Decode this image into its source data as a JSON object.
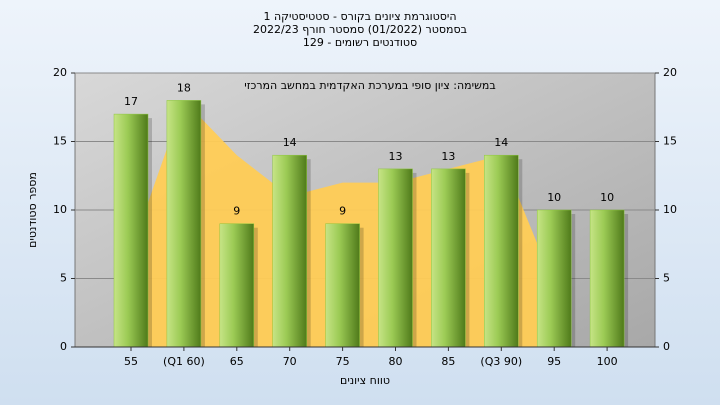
{
  "chart_data": {
    "type": "bar",
    "title": [
      "היסטוגרמת ציונים בקורס - סטטיסטיקה 1",
      "בסמסטר (01/2022) סמסטר חורף 2022/23",
      "סטודנטים רשומים - 129"
    ],
    "annotation": "במשימה: ציון סופי במערכת האקדמית במחשב המרכזי",
    "x_label": "טווח ציונים",
    "y_label": "מספר סטודנטים",
    "categories": [
      "55",
      "(Q1 60)",
      "65",
      "70",
      "75",
      "80",
      "85",
      "(Q3 90)",
      "95",
      "100"
    ],
    "series": [
      {
        "type": "area",
        "color": "#ffcc55",
        "values": [
          7,
          18,
          14,
          11,
          12,
          12,
          13,
          14,
          4.5,
          null
        ]
      },
      {
        "type": "bar",
        "color": "#8dc63f",
        "values": [
          17,
          18,
          9,
          14,
          9,
          13,
          13,
          14,
          10,
          10
        ]
      }
    ],
    "ylim": [
      0,
      20
    ],
    "yticks": [
      0,
      5,
      10,
      15,
      20
    ],
    "y2lim": [
      0,
      20
    ],
    "y2ticks": [
      0,
      5,
      10,
      15,
      20
    ],
    "grid": true
  }
}
